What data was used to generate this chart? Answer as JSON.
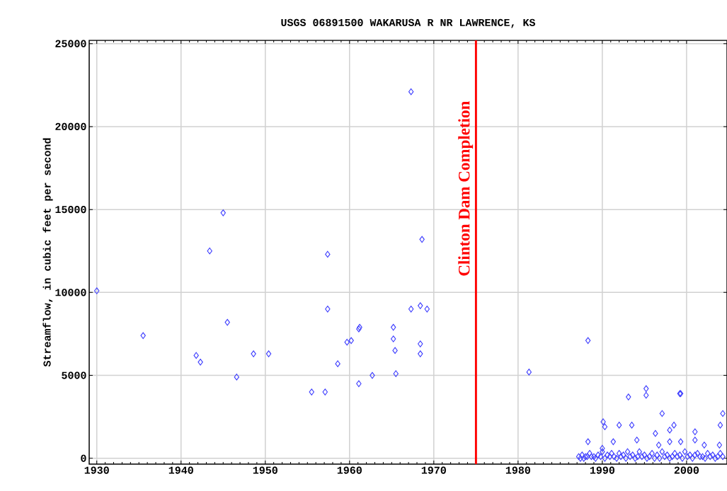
{
  "chart_data": {
    "type": "scatter",
    "title": "USGS 06891500 WAKARUSA R NR LAWRENCE, KS",
    "ylabel": "Streamflow, in cubic feet per second",
    "xlim": [
      1929.1,
      2004.8
    ],
    "ylim": [
      -350,
      25200
    ],
    "xticks": [
      1930,
      1940,
      1950,
      1960,
      1970,
      1980,
      1990,
      2000
    ],
    "yticks": [
      0,
      5000,
      10000,
      15000,
      20000,
      25000
    ],
    "grid": true,
    "marker": "diamond",
    "ref_lines": [
      {
        "axis": "x",
        "value": 1975,
        "label": "Clinton Dam Completion",
        "color": "#ff0000"
      }
    ],
    "series": [
      {
        "color": "#3c3cff",
        "x": [
          1930.0,
          1935.5,
          1941.8,
          1942.3,
          1943.4,
          1945.0,
          1945.5,
          1946.6,
          1948.6,
          1950.4,
          1955.5,
          1957.1,
          1957.4,
          1957.4,
          1958.6,
          1959.7,
          1960.2,
          1961.1,
          1961.2,
          1961.1,
          1962.7,
          1965.2,
          1965.2,
          1965.4,
          1965.5,
          1967.3,
          1967.3,
          1968.4,
          1968.4,
          1968.4,
          1968.6,
          1969.2,
          1981.3,
          1988.3,
          1993.1,
          1995.2,
          1995.2,
          1999.2,
          1999.3,
          1997.1,
          2004.3,
          2004.0,
          1990.1,
          1990.3,
          1992.0,
          1993.5,
          1998.5,
          1998.0,
          1996.3,
          2001.0,
          1988.3,
          1998.0,
          1994.1,
          1991.3,
          1999.3,
          2001.0,
          1996.7,
          2002.1,
          1990.0,
          2003.9,
          1987.2,
          1987.4,
          1987.6,
          1987.8,
          1988.0,
          1988.2,
          1988.5,
          1988.7,
          1989.0,
          1989.2,
          1989.5,
          1989.8,
          1990.0,
          1990.3,
          1990.6,
          1990.9,
          1991.1,
          1991.4,
          1991.7,
          1992.0,
          1992.2,
          1992.5,
          1992.8,
          1993.0,
          1993.3,
          1993.6,
          1993.9,
          1994.2,
          1994.4,
          1994.7,
          1995.0,
          1995.3,
          1995.6,
          1995.9,
          1996.2,
          1996.5,
          1996.8,
          1997.1,
          1997.4,
          1997.7,
          1998.0,
          1998.3,
          1998.6,
          1998.9,
          1999.2,
          1999.5,
          1999.8,
          2000.1,
          2000.4,
          2000.7,
          2001.0,
          2001.3,
          2001.6,
          2001.9,
          2002.2,
          2002.5,
          2002.8,
          2003.1,
          2003.4,
          2003.7,
          2004.0,
          2004.3
        ],
        "values": [
          10100,
          7400,
          6200,
          5800,
          12500,
          14800,
          8200,
          4900,
          6300,
          6300,
          4000,
          4000,
          12300,
          9000,
          5700,
          7000,
          7100,
          7800,
          7900,
          4500,
          5000,
          7900,
          7200,
          6500,
          5100,
          22100,
          9000,
          9200,
          6900,
          6300,
          13200,
          9000,
          5200,
          7100,
          3700,
          4200,
          3800,
          3900,
          3900,
          2700,
          2700,
          2000,
          2200,
          1900,
          2000,
          2000,
          2000,
          1700,
          1500,
          1600,
          1000,
          1000,
          1100,
          1000,
          1000,
          1100,
          800,
          800,
          600,
          800,
          100,
          0,
          200,
          0,
          100,
          100,
          300,
          100,
          100,
          0,
          200,
          100,
          400,
          0,
          200,
          100,
          300,
          100,
          0,
          300,
          100,
          200,
          0,
          400,
          100,
          200,
          0,
          100,
          400,
          100,
          200,
          0,
          100,
          300,
          0,
          200,
          0,
          400,
          100,
          200,
          0,
          100,
          300,
          100,
          200,
          0,
          400,
          100,
          200,
          0,
          200,
          300,
          100,
          100,
          0,
          300,
          100,
          200,
          0,
          100,
          300,
          100
        ]
      }
    ]
  }
}
